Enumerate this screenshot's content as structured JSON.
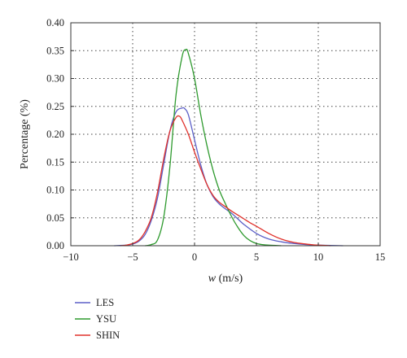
{
  "chart_data": {
    "type": "line",
    "xlabel_var": "w",
    "xlabel_unit": " (m/s)",
    "ylabel": "Percentage (%)",
    "xlim": [
      -10,
      15
    ],
    "ylim": [
      0,
      0.4
    ],
    "xticks": [
      -10,
      -5,
      0,
      5,
      10,
      15
    ],
    "xtick_labels": [
      "−10",
      "−5",
      "0",
      "5",
      "10",
      "15"
    ],
    "yticks": [
      0,
      0.05,
      0.1,
      0.15,
      0.2,
      0.25,
      0.3,
      0.35,
      0.4
    ],
    "ytick_labels": [
      "0.00",
      "0.05",
      "0.10",
      "0.15",
      "0.20",
      "0.25",
      "0.30",
      "0.35",
      "0.40"
    ],
    "grid": "dotted",
    "legend_position": "below",
    "series": [
      {
        "name": "LES",
        "color": "#5b5fc7",
        "x": [
          -6.5,
          -5.5,
          -5,
          -4.5,
          -4,
          -3.5,
          -3,
          -2.5,
          -2,
          -1.5,
          -1,
          -0.8,
          -0.5,
          0,
          0.5,
          1,
          1.5,
          2,
          2.5,
          3,
          3.5,
          4,
          5,
          6,
          7,
          8,
          9,
          10,
          11,
          12
        ],
        "y": [
          0,
          0.001,
          0.003,
          0.008,
          0.02,
          0.045,
          0.085,
          0.145,
          0.205,
          0.24,
          0.247,
          0.246,
          0.235,
          0.19,
          0.145,
          0.11,
          0.088,
          0.075,
          0.066,
          0.058,
          0.048,
          0.038,
          0.022,
          0.012,
          0.007,
          0.004,
          0.002,
          0.001,
          0.0005,
          0
        ]
      },
      {
        "name": "YSU",
        "color": "#2e9a2e",
        "x": [
          -4,
          -3.5,
          -3,
          -2.5,
          -2,
          -1.5,
          -1,
          -0.7,
          -0.5,
          0,
          0.5,
          1,
          1.5,
          2,
          2.5,
          3,
          3.5,
          4,
          4.5,
          5,
          5.5,
          6,
          7
        ],
        "y": [
          0,
          0.002,
          0.01,
          0.05,
          0.14,
          0.27,
          0.34,
          0.352,
          0.345,
          0.3,
          0.235,
          0.18,
          0.135,
          0.1,
          0.075,
          0.052,
          0.033,
          0.018,
          0.009,
          0.004,
          0.002,
          0.001,
          0
        ]
      },
      {
        "name": "SHIN",
        "color": "#e0302a",
        "x": [
          -6,
          -5.5,
          -5,
          -4.5,
          -4,
          -3.5,
          -3,
          -2.5,
          -2,
          -1.5,
          -1.2,
          -1,
          -0.5,
          0,
          0.5,
          1,
          1.5,
          2,
          2.5,
          3,
          3.5,
          4,
          4.5,
          5,
          6,
          7,
          8,
          9,
          10,
          11
        ],
        "y": [
          0,
          0.001,
          0.004,
          0.01,
          0.025,
          0.05,
          0.095,
          0.155,
          0.205,
          0.23,
          0.232,
          0.225,
          0.2,
          0.168,
          0.138,
          0.11,
          0.09,
          0.078,
          0.07,
          0.062,
          0.055,
          0.048,
          0.041,
          0.035,
          0.022,
          0.012,
          0.006,
          0.003,
          0.001,
          0
        ]
      }
    ]
  }
}
